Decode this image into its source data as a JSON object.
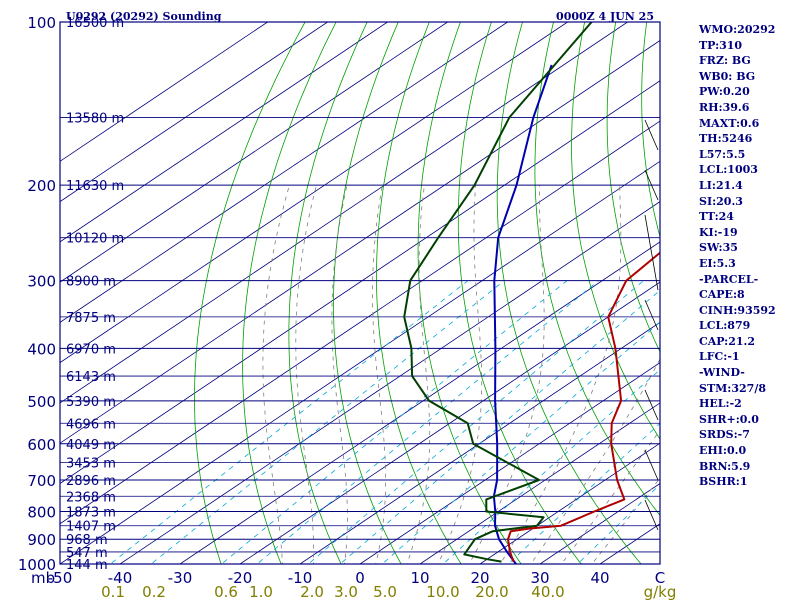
{
  "header": {
    "station": "U0292 (20292) Sounding",
    "time": "0000Z  4 JUN 25"
  },
  "colors": {
    "frame": "#00007f",
    "isobar": "#00007f",
    "isotherm": "#00007f",
    "dry_adiabat": "#00a000",
    "mixing_ratio": "#00a8d8",
    "moist_adiabat": "#7f7f7f",
    "temperature": "#b00000",
    "dewpoint": "#004000",
    "parcel": "#0000b0",
    "x_axis": "#00007f",
    "mixing_axis": "#7f7f00"
  },
  "chart_data": {
    "type": "skew-t",
    "title": "U0292 (20292) Sounding",
    "pressure_axis_unit": "mb",
    "pressure_levels": [
      100,
      200,
      300,
      400,
      500,
      600,
      700,
      800,
      900,
      1000
    ],
    "pressure_tick_labels": [
      "100",
      "200",
      "300",
      "400",
      "500",
      "600",
      "700",
      "800",
      "900",
      "1000"
    ],
    "temperature_axis": {
      "min": -50,
      "max": 50,
      "ticks": [
        "-50",
        "-40",
        "-30",
        "-20",
        "-10",
        "0",
        "10",
        "20",
        "30",
        "40",
        "C"
      ]
    },
    "mixing_ratio_labels": [
      "0.1",
      "0.2",
      "0.6",
      "1.0",
      "2.0",
      "3.0",
      "5.0",
      "10.0",
      "20.0",
      "40.0",
      "g/kg"
    ],
    "height_labels": [
      {
        "p": 100,
        "label": "16500 m"
      },
      {
        "p": 150,
        "label": "13580 m"
      },
      {
        "p": 200,
        "label": "11630 m"
      },
      {
        "p": 250,
        "label": "10120 m"
      },
      {
        "p": 300,
        "label": "8900 m"
      },
      {
        "p": 350,
        "label": "7875 m"
      },
      {
        "p": 400,
        "label": "6970 m"
      },
      {
        "p": 450,
        "label": "6143 m"
      },
      {
        "p": 500,
        "label": "5390 m"
      },
      {
        "p": 550,
        "label": "4696 m"
      },
      {
        "p": 600,
        "label": "4049 m"
      },
      {
        "p": 650,
        "label": "3453 m"
      },
      {
        "p": 700,
        "label": "2896 m"
      },
      {
        "p": 750,
        "label": "2368 m"
      },
      {
        "p": 800,
        "label": "1873 m"
      },
      {
        "p": 850,
        "label": "1407 m"
      },
      {
        "p": 900,
        "label": "968 m"
      },
      {
        "p": 950,
        "label": "547 m"
      },
      {
        "p": 1000,
        "label": "144 m"
      }
    ],
    "temperature_profile": [
      {
        "p": 990,
        "t": 25.0
      },
      {
        "p": 950,
        "t": 22.0
      },
      {
        "p": 900,
        "t": 18.5
      },
      {
        "p": 870,
        "t": 17.0
      },
      {
        "p": 860,
        "t": 19.5
      },
      {
        "p": 850,
        "t": 24.0
      },
      {
        "p": 800,
        "t": 26.0
      },
      {
        "p": 760,
        "t": 28.0
      },
      {
        "p": 700,
        "t": 22.0
      },
      {
        "p": 600,
        "t": 12.0
      },
      {
        "p": 550,
        "t": 7.0
      },
      {
        "p": 500,
        "t": 3.0
      },
      {
        "p": 400,
        "t": -11.0
      },
      {
        "p": 350,
        "t": -20.0
      },
      {
        "p": 300,
        "t": -26.0
      },
      {
        "p": 250,
        "t": -28.0
      },
      {
        "p": 200,
        "t": -35.0
      },
      {
        "p": 150,
        "t": -41.0
      },
      {
        "p": 100,
        "t": -56.0
      }
    ],
    "dewpoint_profile": [
      {
        "p": 990,
        "td": 23.0
      },
      {
        "p": 980,
        "td": 20.0
      },
      {
        "p": 960,
        "td": 15.0
      },
      {
        "p": 930,
        "td": 14.0
      },
      {
        "p": 900,
        "td": 13.0
      },
      {
        "p": 870,
        "td": 14.0
      },
      {
        "p": 850,
        "td": 20.0
      },
      {
        "p": 820,
        "td": 19.0
      },
      {
        "p": 800,
        "td": 8.0
      },
      {
        "p": 760,
        "td": 5.0
      },
      {
        "p": 700,
        "td": 9.0
      },
      {
        "p": 600,
        "td": -11.0
      },
      {
        "p": 550,
        "td": -17.0
      },
      {
        "p": 500,
        "td": -29.0
      },
      {
        "p": 450,
        "td": -38.0
      },
      {
        "p": 400,
        "td": -45.0
      },
      {
        "p": 350,
        "td": -54.0
      },
      {
        "p": 300,
        "td": -62.0
      },
      {
        "p": 250,
        "td": -68.0
      },
      {
        "p": 200,
        "td": -75.0
      },
      {
        "p": 150,
        "td": -86.0
      },
      {
        "p": 100,
        "td": -96.0
      }
    ],
    "parcel_profile": [
      {
        "p": 1000,
        "t": 26.0
      },
      {
        "p": 950,
        "t": 21.5
      },
      {
        "p": 900,
        "t": 17.0
      },
      {
        "p": 850,
        "t": 13.0
      },
      {
        "p": 800,
        "t": 9.5
      },
      {
        "p": 750,
        "t": 5.5
      },
      {
        "p": 700,
        "t": 2.0
      },
      {
        "p": 600,
        "t": -7.0
      },
      {
        "p": 500,
        "t": -18.0
      },
      {
        "p": 400,
        "t": -31.0
      },
      {
        "p": 300,
        "t": -48.0
      },
      {
        "p": 250,
        "t": -58.0
      },
      {
        "p": 200,
        "t": -68.0
      },
      {
        "p": 150,
        "t": -82.0
      },
      {
        "p": 120,
        "t": -92.0
      }
    ]
  },
  "indices": [
    "WMO:20292",
    "TP:310",
    "FRZ: BG",
    "WB0: BG",
    "PW:0.20",
    "RH:39.6",
    "MAXT:0.6",
    "TH:5246",
    "L57:5.5",
    "LCL:1003",
    "LI:21.4",
    "SI:20.3",
    "TT:24",
    "KI:-19",
    "SW:35",
    "EI:5.3",
    "-PARCEL-",
    "CAPE:8",
    "CINH:93592",
    "LCL:879",
    "CAP:21.2",
    "LFC:-1",
    "-WIND-",
    "STM:327/8",
    "HEL:-2",
    "SHR+:0.0",
    "SRDS:-7",
    "EHI:0.0",
    "BRN:5.9",
    "BSHR:1"
  ]
}
